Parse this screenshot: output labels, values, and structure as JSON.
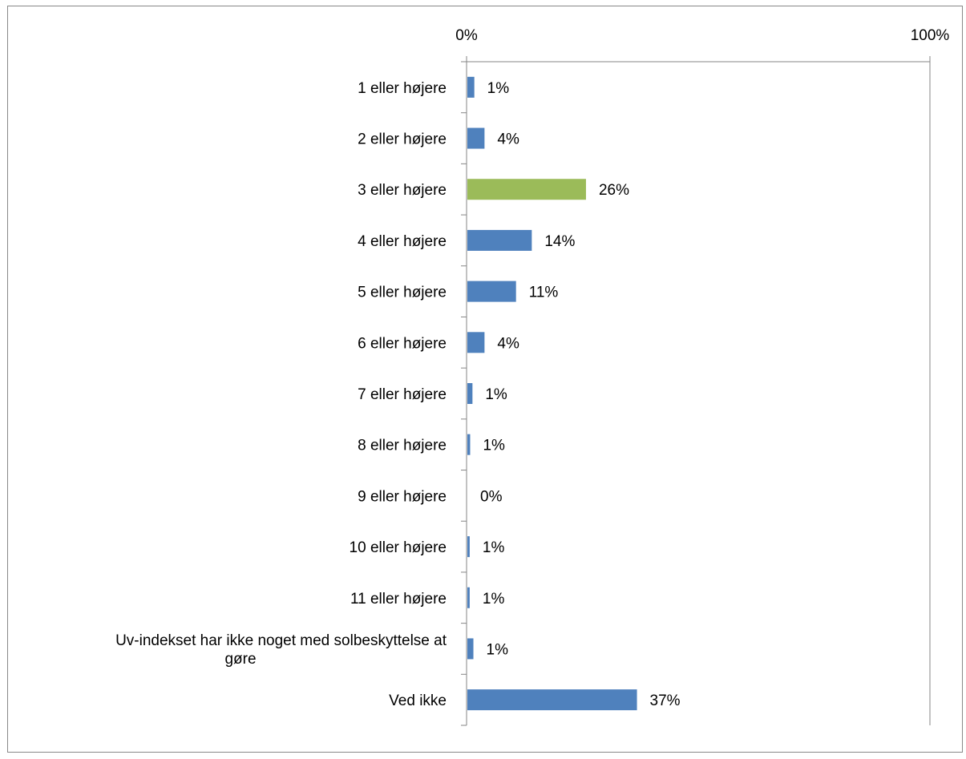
{
  "chart_data": {
    "type": "bar",
    "orientation": "horizontal",
    "title": "",
    "xlabel": "",
    "ylabel": "",
    "xlim": [
      0,
      100
    ],
    "x_ticks": [
      "0%",
      "100%"
    ],
    "grid": false,
    "legend": "none",
    "categories": [
      "1 eller højere",
      "2 eller højere",
      "3 eller højere",
      "4 eller højere",
      "5 eller højere",
      "6 eller højere",
      "7 eller højere",
      "8 eller højere",
      "9 eller højere",
      "10 eller højere",
      "11 eller højere",
      "Uv-indekset har ikke noget med solbeskyttelse at gøre",
      "Ved ikke"
    ],
    "category_lines": [
      [
        "1 eller højere"
      ],
      [
        "2 eller højere"
      ],
      [
        "3 eller højere"
      ],
      [
        "4 eller højere"
      ],
      [
        "5 eller højere"
      ],
      [
        "6 eller højere"
      ],
      [
        "7 eller højere"
      ],
      [
        "8 eller højere"
      ],
      [
        "9 eller højere"
      ],
      [
        "10 eller højere"
      ],
      [
        "11 eller højere"
      ],
      [
        "Uv-indekset har ikke noget med solbeskyttelse at",
        "gøre"
      ],
      [
        "Ved ikke"
      ]
    ],
    "values": [
      1.5,
      3.7,
      25.6,
      13.9,
      10.5,
      3.7,
      1.1,
      0.6,
      0,
      0.5,
      0.5,
      1.3,
      36.6
    ],
    "value_labels": [
      "1%",
      "4%",
      "26%",
      "14%",
      "11%",
      "4%",
      "1%",
      "1%",
      "0%",
      "1%",
      "1%",
      "1%",
      "37%"
    ],
    "highlight_index": 2,
    "colors": {
      "bar": "#4F81BD",
      "highlight": "#9BBB59",
      "axis": "#868686",
      "border": "#888888"
    }
  }
}
